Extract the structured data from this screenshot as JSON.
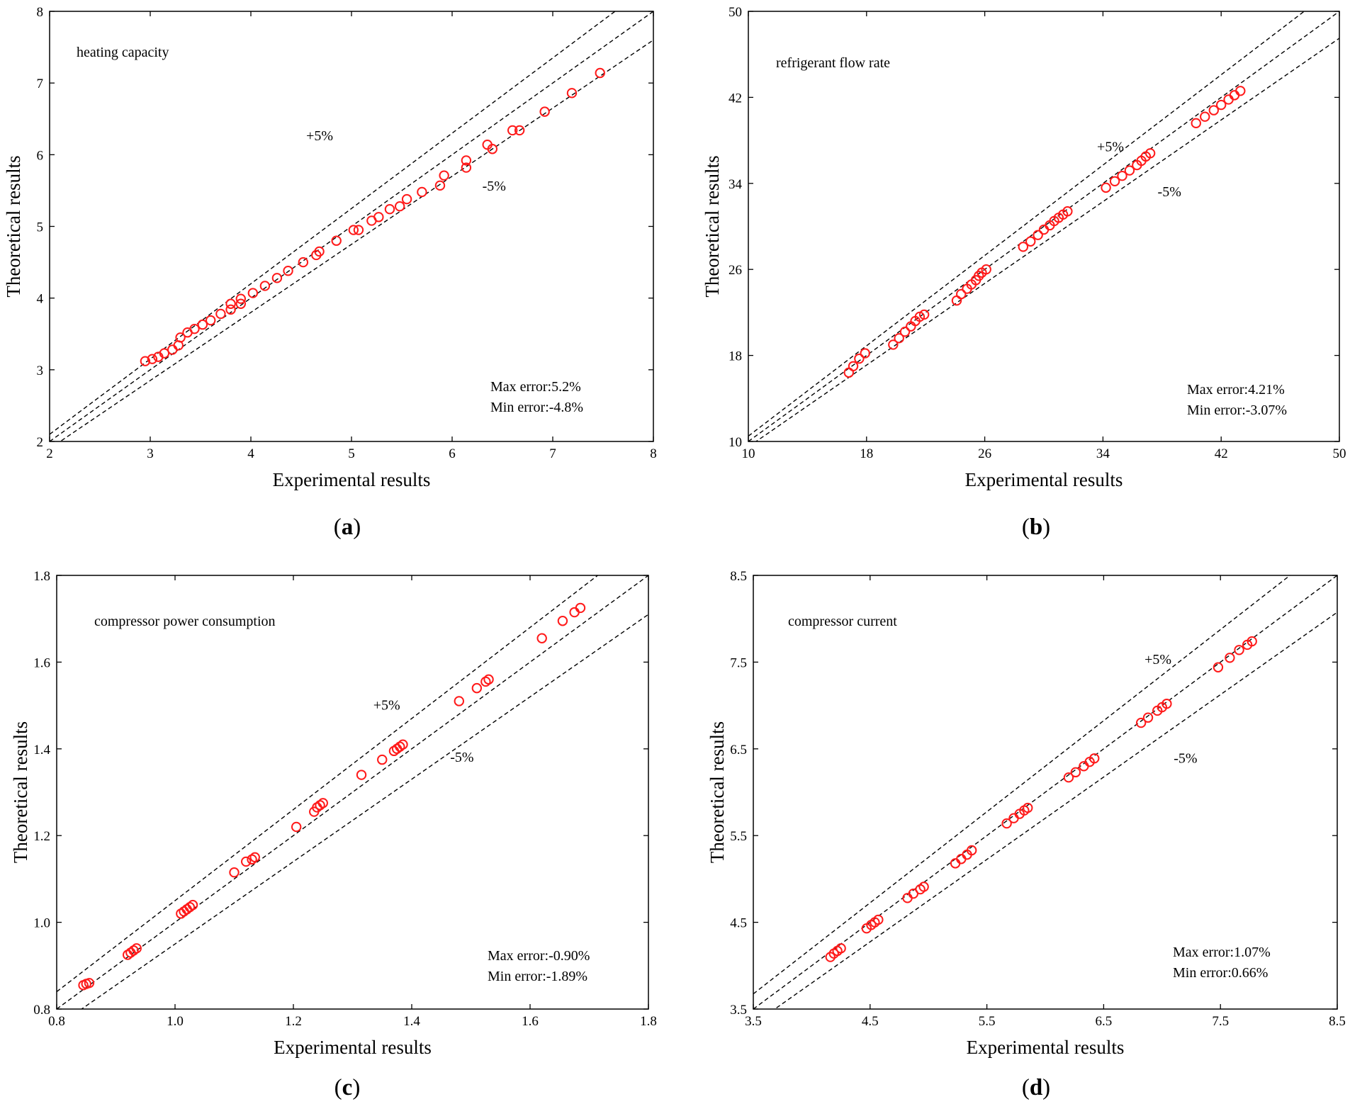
{
  "chart_data": [
    {
      "id": "a",
      "type": "scatter",
      "title": "heating capacity",
      "xlabel": "Experimental results",
      "ylabel": "Theoretical results",
      "xlim": [
        2,
        8
      ],
      "ylim": [
        2,
        8
      ],
      "xticks": [
        2,
        3,
        4,
        5,
        6,
        7,
        8
      ],
      "yticks": [
        2,
        3,
        4,
        5,
        6,
        7,
        8
      ],
      "xtick_labels": [
        "2",
        "3",
        "4",
        "5",
        "6",
        "7",
        "8"
      ],
      "ytick_labels": [
        "2",
        "3",
        "4",
        "5",
        "6",
        "7",
        "8"
      ],
      "ref_lines": [
        {
          "name": "+5%",
          "slope": 1.05
        },
        {
          "name": "0%",
          "slope": 1.0
        },
        {
          "name": "-5%",
          "slope": 0.95
        }
      ],
      "annotations": {
        "plus": "+5%",
        "minus": "-5%",
        "plus_at": [
          4.55,
          6.2
        ],
        "minus_at": [
          6.3,
          5.5
        ]
      },
      "max_error": "Max error:5.2%",
      "min_error": "Min error:-4.8%",
      "panel_label": "a",
      "points": [
        [
          2.95,
          3.12
        ],
        [
          3.02,
          3.15
        ],
        [
          3.08,
          3.18
        ],
        [
          3.14,
          3.23
        ],
        [
          3.22,
          3.28
        ],
        [
          3.28,
          3.34
        ],
        [
          3.3,
          3.45
        ],
        [
          3.37,
          3.52
        ],
        [
          3.44,
          3.57
        ],
        [
          3.52,
          3.63
        ],
        [
          3.6,
          3.69
        ],
        [
          3.7,
          3.78
        ],
        [
          3.8,
          3.84
        ],
        [
          3.8,
          3.92
        ],
        [
          3.9,
          3.92
        ],
        [
          3.9,
          3.99
        ],
        [
          4.02,
          4.07
        ],
        [
          4.14,
          4.17
        ],
        [
          4.26,
          4.28
        ],
        [
          4.37,
          4.38
        ],
        [
          4.52,
          4.5
        ],
        [
          4.65,
          4.6
        ],
        [
          4.68,
          4.65
        ],
        [
          4.85,
          4.8
        ],
        [
          5.02,
          4.95
        ],
        [
          5.07,
          4.95
        ],
        [
          5.2,
          5.08
        ],
        [
          5.27,
          5.13
        ],
        [
          5.38,
          5.24
        ],
        [
          5.48,
          5.28
        ],
        [
          5.55,
          5.38
        ],
        [
          5.7,
          5.48
        ],
        [
          5.88,
          5.57
        ],
        [
          5.92,
          5.71
        ],
        [
          6.14,
          5.82
        ],
        [
          6.14,
          5.92
        ],
        [
          6.35,
          6.14
        ],
        [
          6.4,
          6.08
        ],
        [
          6.6,
          6.34
        ],
        [
          6.67,
          6.34
        ],
        [
          6.92,
          6.6
        ],
        [
          7.19,
          6.86
        ],
        [
          7.47,
          7.14
        ]
      ]
    },
    {
      "id": "b",
      "type": "scatter",
      "title": "refrigerant flow rate",
      "xlabel": "Experimental results",
      "ylabel": "Theoretical results",
      "xlim": [
        10,
        50
      ],
      "ylim": [
        10,
        50
      ],
      "xticks": [
        10,
        18,
        26,
        34,
        42,
        50
      ],
      "yticks": [
        10,
        18,
        26,
        34,
        42,
        50
      ],
      "xtick_labels": [
        "10",
        "18",
        "26",
        "34",
        "42",
        "50"
      ],
      "ytick_labels": [
        "10",
        "18",
        "26",
        "34",
        "42",
        "50"
      ],
      "ref_lines": [
        {
          "name": "+5%",
          "slope": 1.05
        },
        {
          "name": "0%",
          "slope": 1.0
        },
        {
          "name": "-5%",
          "slope": 0.95
        }
      ],
      "annotations": {
        "plus": "+5%",
        "minus": "-5%",
        "plus_at": [
          33.6,
          37.0
        ],
        "minus_at": [
          37.7,
          32.8
        ]
      },
      "max_error": "Max error:4.21%",
      "min_error": "Min error:-3.07%",
      "panel_label": "b",
      "points": [
        [
          16.8,
          16.4
        ],
        [
          17.1,
          17.0
        ],
        [
          17.5,
          17.7
        ],
        [
          17.9,
          18.2
        ],
        [
          19.8,
          19.0
        ],
        [
          20.2,
          19.6
        ],
        [
          20.6,
          20.2
        ],
        [
          21.0,
          20.7
        ],
        [
          21.3,
          21.2
        ],
        [
          21.6,
          21.6
        ],
        [
          21.9,
          21.8
        ],
        [
          24.1,
          23.1
        ],
        [
          24.4,
          23.7
        ],
        [
          24.8,
          24.2
        ],
        [
          25.1,
          24.6
        ],
        [
          25.4,
          25.0
        ],
        [
          25.6,
          25.4
        ],
        [
          25.8,
          25.7
        ],
        [
          26.1,
          26.0
        ],
        [
          28.6,
          28.1
        ],
        [
          29.1,
          28.6
        ],
        [
          29.6,
          29.2
        ],
        [
          30.0,
          29.7
        ],
        [
          30.4,
          30.1
        ],
        [
          30.7,
          30.5
        ],
        [
          31.0,
          30.8
        ],
        [
          31.3,
          31.1
        ],
        [
          31.6,
          31.4
        ],
        [
          34.2,
          33.6
        ],
        [
          34.8,
          34.2
        ],
        [
          35.3,
          34.7
        ],
        [
          35.8,
          35.2
        ],
        [
          36.3,
          35.7
        ],
        [
          36.6,
          36.1
        ],
        [
          36.9,
          36.5
        ],
        [
          37.2,
          36.8
        ],
        [
          40.3,
          39.6
        ],
        [
          40.9,
          40.2
        ],
        [
          41.5,
          40.8
        ],
        [
          42.0,
          41.3
        ],
        [
          42.5,
          41.8
        ],
        [
          42.9,
          42.2
        ],
        [
          43.3,
          42.6
        ]
      ]
    },
    {
      "id": "c",
      "type": "scatter",
      "title": "compressor power consumption",
      "xlabel": "Experimental results",
      "ylabel": "Theoretical results",
      "xlim": [
        0.8,
        1.8
      ],
      "ylim": [
        0.8,
        1.8
      ],
      "xticks": [
        0.8,
        1.0,
        1.2,
        1.4,
        1.6,
        1.8
      ],
      "yticks": [
        0.8,
        1.0,
        1.2,
        1.4,
        1.6,
        1.8
      ],
      "xtick_labels": [
        "0.8",
        "1.0",
        "1.2",
        "1.4",
        "1.6",
        "1.8"
      ],
      "ytick_labels": [
        "0.8",
        "1.0",
        "1.2",
        "1.4",
        "1.6",
        "1.8"
      ],
      "ref_lines": [
        {
          "name": "+5%",
          "slope": 1.05
        },
        {
          "name": "0%",
          "slope": 1.0
        },
        {
          "name": "-5%",
          "slope": 0.95
        }
      ],
      "annotations": {
        "plus": "+5%",
        "minus": "-5%",
        "plus_at": [
          1.335,
          1.49
        ],
        "minus_at": [
          1.465,
          1.37
        ]
      },
      "max_error": "Max error:-0.90%",
      "min_error": "Min error:-1.89%",
      "panel_label": "c",
      "points": [
        [
          0.845,
          0.855
        ],
        [
          0.85,
          0.858
        ],
        [
          0.855,
          0.86
        ],
        [
          0.92,
          0.925
        ],
        [
          0.925,
          0.93
        ],
        [
          0.93,
          0.935
        ],
        [
          0.935,
          0.94
        ],
        [
          1.01,
          1.02
        ],
        [
          1.015,
          1.025
        ],
        [
          1.02,
          1.03
        ],
        [
          1.025,
          1.035
        ],
        [
          1.03,
          1.04
        ],
        [
          1.1,
          1.115
        ],
        [
          1.12,
          1.14
        ],
        [
          1.13,
          1.145
        ],
        [
          1.135,
          1.15
        ],
        [
          1.205,
          1.22
        ],
        [
          1.235,
          1.255
        ],
        [
          1.24,
          1.265
        ],
        [
          1.245,
          1.27
        ],
        [
          1.25,
          1.275
        ],
        [
          1.315,
          1.34
        ],
        [
          1.35,
          1.375
        ],
        [
          1.37,
          1.395
        ],
        [
          1.375,
          1.4
        ],
        [
          1.38,
          1.405
        ],
        [
          1.385,
          1.41
        ],
        [
          1.48,
          1.51
        ],
        [
          1.51,
          1.54
        ],
        [
          1.525,
          1.555
        ],
        [
          1.53,
          1.56
        ],
        [
          1.62,
          1.655
        ],
        [
          1.655,
          1.695
        ],
        [
          1.675,
          1.715
        ],
        [
          1.685,
          1.725
        ]
      ]
    },
    {
      "id": "d",
      "type": "scatter",
      "title": "compressor current",
      "xlabel": "Experimental results",
      "ylabel": "Theoretical results",
      "xlim": [
        3.5,
        8.5
      ],
      "ylim": [
        3.5,
        8.5
      ],
      "xticks": [
        3.5,
        4.5,
        5.5,
        6.5,
        7.5,
        8.5
      ],
      "yticks": [
        3.5,
        4.5,
        5.5,
        6.5,
        7.5,
        8.5
      ],
      "xtick_labels": [
        "3.5",
        "4.5",
        "5.5",
        "6.5",
        "7.5",
        "8.5"
      ],
      "ytick_labels": [
        "3.5",
        "4.5",
        "5.5",
        "6.5",
        "7.5",
        "8.5"
      ],
      "ref_lines": [
        {
          "name": "+5%",
          "slope": 1.05
        },
        {
          "name": "0%",
          "slope": 1.0
        },
        {
          "name": "-5%",
          "slope": 0.95
        }
      ],
      "annotations": {
        "plus": "+5%",
        "minus": "-5%",
        "plus_at": [
          6.85,
          7.48
        ],
        "minus_at": [
          7.1,
          6.34
        ]
      },
      "max_error": "Max error:1.07%",
      "min_error": "Min error:0.66%",
      "panel_label": "d",
      "points": [
        [
          4.16,
          4.1
        ],
        [
          4.19,
          4.14
        ],
        [
          4.22,
          4.17
        ],
        [
          4.25,
          4.2
        ],
        [
          4.47,
          4.43
        ],
        [
          4.51,
          4.47
        ],
        [
          4.54,
          4.5
        ],
        [
          4.57,
          4.53
        ],
        [
          4.82,
          4.78
        ],
        [
          4.87,
          4.83
        ],
        [
          4.93,
          4.88
        ],
        [
          4.96,
          4.91
        ],
        [
          5.23,
          5.18
        ],
        [
          5.28,
          5.23
        ],
        [
          5.33,
          5.28
        ],
        [
          5.37,
          5.33
        ],
        [
          5.67,
          5.64
        ],
        [
          5.73,
          5.7
        ],
        [
          5.78,
          5.75
        ],
        [
          5.82,
          5.79
        ],
        [
          5.85,
          5.82
        ],
        [
          6.2,
          6.17
        ],
        [
          6.26,
          6.23
        ],
        [
          6.33,
          6.3
        ],
        [
          6.38,
          6.35
        ],
        [
          6.42,
          6.39
        ],
        [
          6.82,
          6.8
        ],
        [
          6.88,
          6.86
        ],
        [
          6.96,
          6.94
        ],
        [
          7.0,
          6.98
        ],
        [
          7.04,
          7.02
        ],
        [
          7.48,
          7.44
        ],
        [
          7.58,
          7.55
        ],
        [
          7.66,
          7.64
        ],
        [
          7.73,
          7.7
        ],
        [
          7.77,
          7.74
        ]
      ]
    }
  ]
}
